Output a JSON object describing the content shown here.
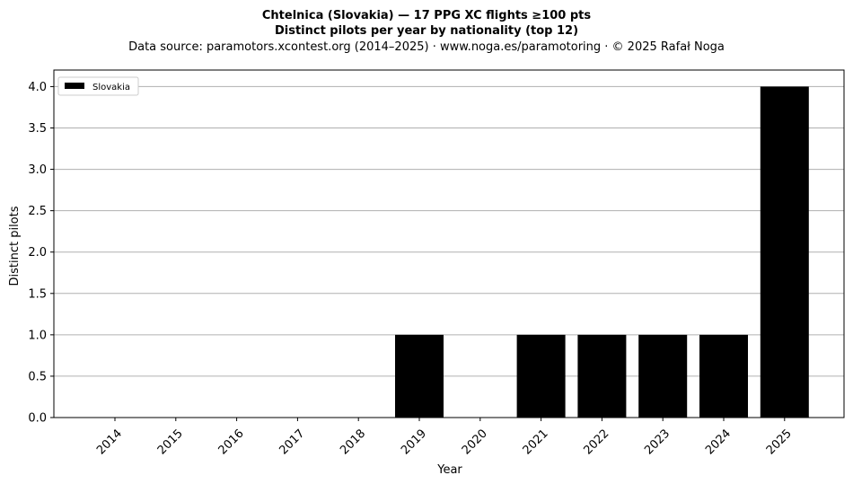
{
  "chart_data": {
    "type": "bar",
    "title_lines": [
      "Chtelnica (Slovakia)  —  17 PPG XC flights ≥100 pts",
      "Distinct pilots per year by nationality (top 12)"
    ],
    "subtitle": "Data source: paramotors.xcontest.org (2014–2025)  ·  www.noga.es/paramotoring  ·  © 2025 Rafał Noga",
    "xlabel": "Year",
    "ylabel": "Distinct pilots",
    "categories": [
      "2014",
      "2015",
      "2016",
      "2017",
      "2018",
      "2019",
      "2020",
      "2021",
      "2022",
      "2023",
      "2024",
      "2025"
    ],
    "series": [
      {
        "name": "Slovakia",
        "color": "#000000",
        "values": [
          0,
          0,
          0,
          0,
          0,
          1,
          0,
          1,
          1,
          1,
          1,
          4
        ]
      }
    ],
    "ylim": [
      0,
      4.2
    ],
    "yticks": [
      "0.0",
      "0.5",
      "1.0",
      "1.5",
      "2.0",
      "2.5",
      "3.0",
      "3.5",
      "4.0"
    ],
    "grid": "horizontal",
    "legend_position": "top-left"
  }
}
